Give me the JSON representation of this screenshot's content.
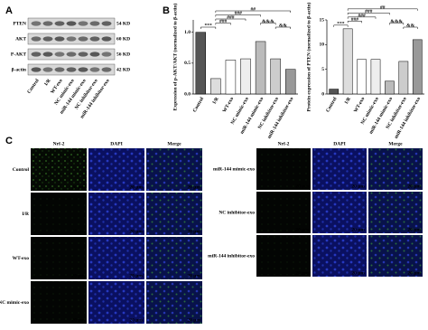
{
  "panels": {
    "a": "A",
    "b": "B",
    "c": "C"
  },
  "blot": {
    "rows": [
      "PTEN",
      "AKT",
      "P-AKT",
      "β-actin"
    ],
    "sizes": [
      "54 KD",
      "60 KD",
      "56 KD",
      "42 KD"
    ],
    "lanes": [
      "Control",
      "I/R",
      "WT-exo",
      "NC mimic-exo",
      "miR-144 mimic-exo",
      "NC inhibitor-exo",
      "miR-144 inhibitor-exo"
    ]
  },
  "chart_data": [
    {
      "type": "bar",
      "y_label": "Expression of p-AKT/AKT (normalized to β-actin)",
      "categories": [
        "Control",
        "I/R",
        "WT-exo",
        "NC mimic-exo",
        "miR-144 mimic-exo",
        "NC inhibitor-exo",
        "miR-144 inhibitor-exo"
      ],
      "values": [
        1.0,
        0.25,
        0.55,
        0.57,
        0.85,
        0.57,
        0.4
      ],
      "colors": [
        "#555555",
        "#dddddd",
        "#ffffff",
        "#eeeeee",
        "#bbbbbb",
        "#cccccc",
        "#999999"
      ],
      "ylim": [
        0,
        1.2
      ],
      "yticks": [
        {
          "value": 0,
          "label": "0.0"
        },
        {
          "value": 0.5,
          "label": "0.5"
        },
        {
          "value": 1,
          "label": "1.0"
        }
      ],
      "annotations": [
        "***",
        "###",
        "###",
        "###",
        "&&&",
        "&&",
        "##"
      ]
    },
    {
      "type": "bar",
      "y_label": "Protein expression of PTEN (normalized to β-actin)",
      "categories": [
        "Control",
        "I/R",
        "WT-exo",
        "NC mimic-exo",
        "miR-144 mimic-exo",
        "NC inhibitor-exo",
        "miR-144 inhibitor-exo"
      ],
      "values": [
        1,
        13.2,
        7,
        7,
        2.6,
        6.6,
        11
      ],
      "colors": [
        "#555555",
        "#dddddd",
        "#ffffff",
        "#eeeeee",
        "#bbbbbb",
        "#cccccc",
        "#999999"
      ],
      "ylim": [
        0,
        15
      ],
      "yticks": [
        0,
        5,
        10,
        15
      ],
      "annotations": [
        "***",
        "###",
        "###",
        "###",
        "&&&",
        "&&",
        "##"
      ]
    }
  ],
  "microscopy": {
    "columns": [
      "Nrf-2",
      "DAPI",
      "Merge"
    ],
    "left_rows": [
      "Control",
      "I/R",
      "WT-exo",
      "NC mimic-exo"
    ],
    "right_rows": [
      "miR-144 mimic-exo",
      "NC inhibitor-exo",
      "miR-144 inhibitor-exo"
    ],
    "scale_label": "20 μm"
  }
}
